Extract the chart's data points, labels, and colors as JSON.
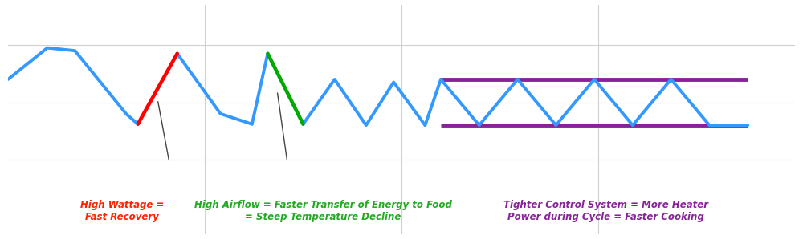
{
  "bg_color": "#ffffff",
  "grid_color": "#d0d0d0",
  "blue_color": "#3399ff",
  "red_color": "#ff0000",
  "green_color": "#00aa00",
  "purple_color": "#882299",
  "annotation_color": "#444444",
  "text_red": "#ff2200",
  "text_green": "#22aa22",
  "text_purple": "#882299",
  "label1": "High Wattage =\nFast Recovery",
  "label2": "High Airflow = Faster Transfer of Energy to Food\n= Steep Temperature Decline",
  "label3": "Tighter Control System = More Heater\nPower during Cycle = Faster Cooking",
  "figsize": [
    10,
    2.98
  ],
  "dpi": 100,
  "xlim": [
    0,
    10
  ],
  "ylim": [
    -1.8,
    2.2
  ]
}
